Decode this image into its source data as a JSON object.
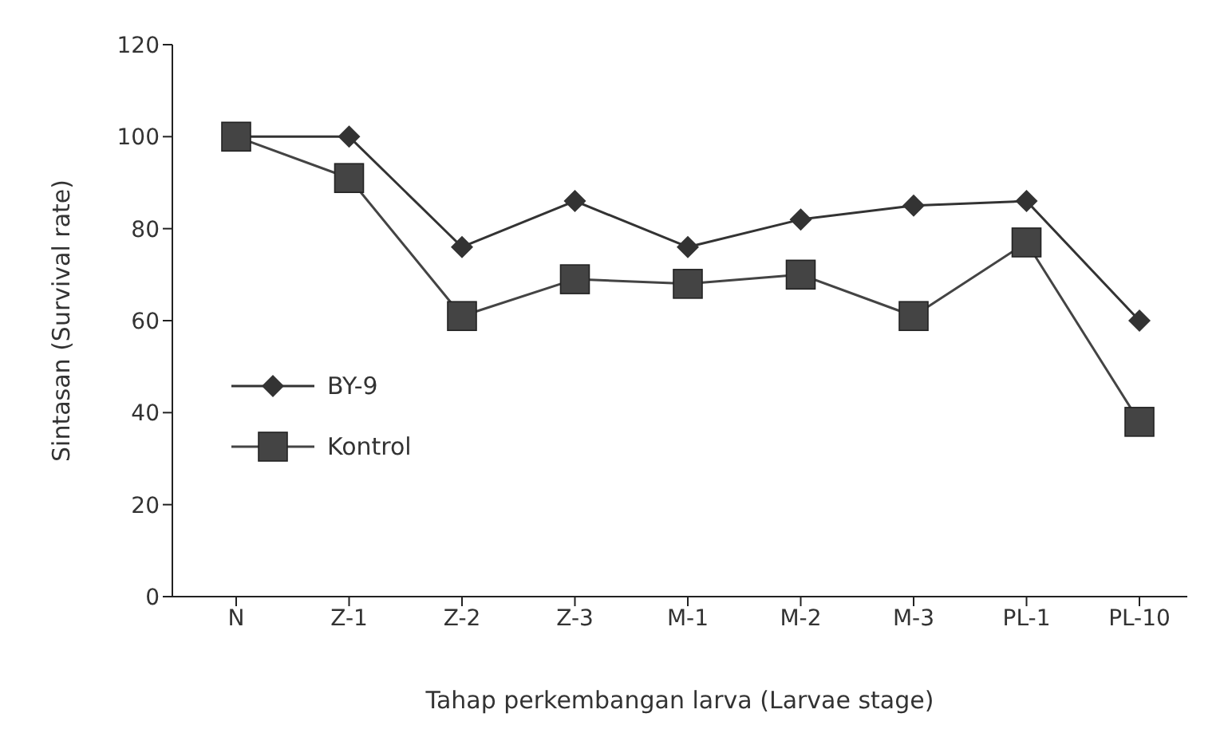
{
  "chart_data": {
    "type": "line",
    "xlabel": "Tahap perkembangan larva (Larvae stage)",
    "ylabel": "Sintasan (Survival rate)",
    "categories": [
      "N",
      "Z-1",
      "Z-2",
      "Z-3",
      "M-1",
      "M-2",
      "M-3",
      "PL-1",
      "PL-10"
    ],
    "series": [
      {
        "name": "BY-9",
        "color": "#333333",
        "marker": "diamond",
        "values": [
          100,
          100,
          76,
          86,
          76,
          82,
          85,
          86,
          60
        ]
      },
      {
        "name": "Kontrol",
        "color": "#444444",
        "marker": "square",
        "values": [
          100,
          91,
          61,
          69,
          68,
          70,
          61,
          77,
          38
        ]
      }
    ],
    "ylim": [
      0,
      120
    ],
    "yticks": [
      0,
      20,
      40,
      60,
      80,
      100,
      120
    ],
    "grid": false,
    "legend": "left",
    "line_style": "solid"
  }
}
